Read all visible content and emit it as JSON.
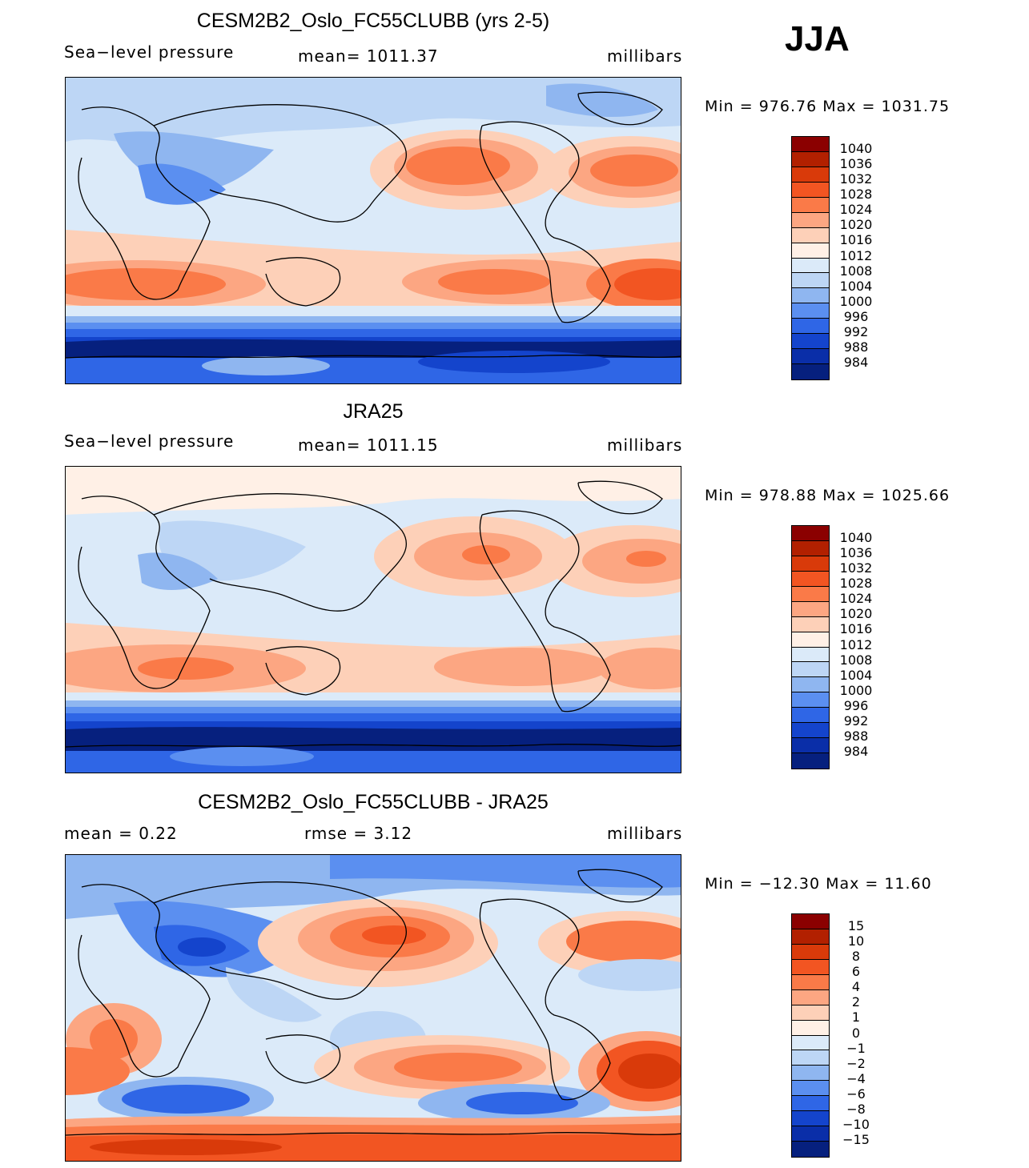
{
  "season": "JJA",
  "panels": [
    {
      "title": "CESM2B2_Oslo_FC55CLUBB (yrs 2-5)",
      "left_label": "Sea−level  pressure",
      "center_label": "mean=  1011.37",
      "right_label": "millibars",
      "minmax": "Min  =  976.76  Max  =  1031.75",
      "colorbar_labels": [
        "1040",
        "1036",
        "1032",
        "1028",
        "1024",
        "1020",
        "1016",
        "1012",
        "1008",
        "1004",
        "1000",
        "996",
        "992",
        "988",
        "984"
      ],
      "colorbar_colors": [
        "#8b0000",
        "#b22000",
        "#d93a0a",
        "#f25522",
        "#fa7a48",
        "#fca682",
        "#fdd0b8",
        "#fff0e6",
        "#dbeaf9",
        "#bdd6f5",
        "#8fb6f0",
        "#5b8ff0",
        "#2f66e6",
        "#1444cc",
        "#0a2ea8",
        "#06207e"
      ]
    },
    {
      "title": "JRA25",
      "left_label": "Sea−level  pressure",
      "center_label": "mean=  1011.15",
      "right_label": "millibars",
      "minmax": "Min  =  978.88  Max  =  1025.66",
      "colorbar_labels": [
        "1040",
        "1036",
        "1032",
        "1028",
        "1024",
        "1020",
        "1016",
        "1012",
        "1008",
        "1004",
        "1000",
        "996",
        "992",
        "988",
        "984"
      ],
      "colorbar_colors": [
        "#8b0000",
        "#b22000",
        "#d93a0a",
        "#f25522",
        "#fa7a48",
        "#fca682",
        "#fdd0b8",
        "#fff0e6",
        "#dbeaf9",
        "#bdd6f5",
        "#8fb6f0",
        "#5b8ff0",
        "#2f66e6",
        "#1444cc",
        "#0a2ea8",
        "#06207e"
      ]
    },
    {
      "title": "CESM2B2_Oslo_FC55CLUBB - JRA25",
      "left_label": "mean  =      0.22",
      "center_label": "rmse  =      3.12",
      "right_label": "millibars",
      "minmax": "Min  =  −12.30  Max  =     11.60",
      "colorbar_labels": [
        "15",
        "10",
        "8",
        "6",
        "4",
        "2",
        "1",
        "0",
        "−1",
        "−2",
        "−4",
        "−6",
        "−8",
        "−10",
        "−15"
      ],
      "colorbar_colors": [
        "#8b0000",
        "#b22000",
        "#d93a0a",
        "#f25522",
        "#fa7a48",
        "#fca682",
        "#fdd0b8",
        "#fff0e6",
        "#dbeaf9",
        "#bdd6f5",
        "#8fb6f0",
        "#5b8ff0",
        "#2f66e6",
        "#1444cc",
        "#0a2ea8",
        "#06207e"
      ]
    }
  ]
}
